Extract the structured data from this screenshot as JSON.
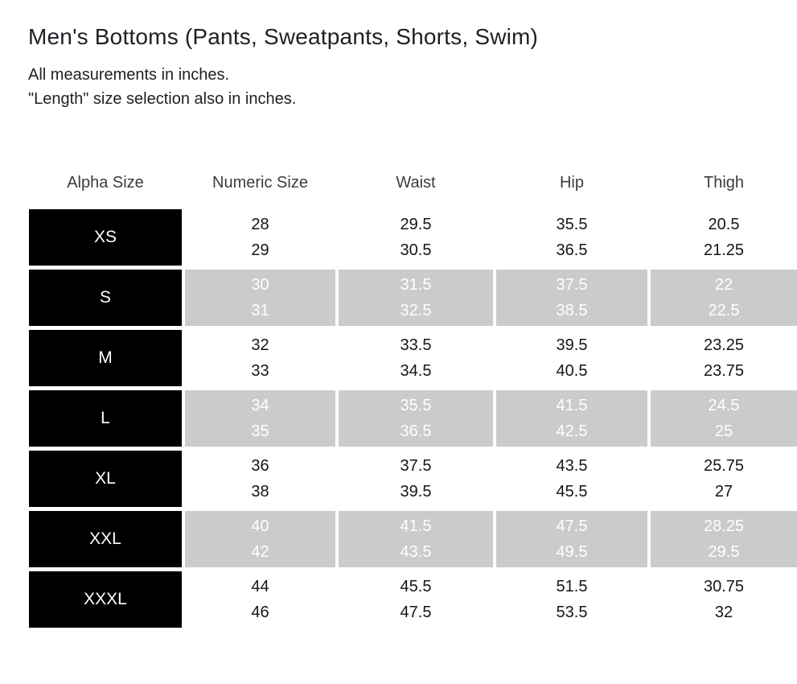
{
  "page": {
    "title": "Men's Bottoms (Pants, Sweatpants, Shorts, Swim)",
    "note_line1": "All measurements in inches.",
    "note_line2": "\"Length\" size selection also in inches."
  },
  "table": {
    "columns": [
      "Alpha Size",
      "Numeric Size",
      "Waist",
      "Hip",
      "Thigh"
    ],
    "rows": [
      {
        "alpha": "XS",
        "highlighted": false,
        "numeric": [
          "28",
          "29"
        ],
        "waist": [
          "29.5",
          "30.5"
        ],
        "hip": [
          "35.5",
          "36.5"
        ],
        "thigh": [
          "20.5",
          "21.25"
        ]
      },
      {
        "alpha": "S",
        "highlighted": true,
        "numeric": [
          "30",
          "31"
        ],
        "waist": [
          "31.5",
          "32.5"
        ],
        "hip": [
          "37.5",
          "38.5"
        ],
        "thigh": [
          "22",
          "22.5"
        ]
      },
      {
        "alpha": "M",
        "highlighted": false,
        "numeric": [
          "32",
          "33"
        ],
        "waist": [
          "33.5",
          "34.5"
        ],
        "hip": [
          "39.5",
          "40.5"
        ],
        "thigh": [
          "23.25",
          "23.75"
        ]
      },
      {
        "alpha": "L",
        "highlighted": true,
        "numeric": [
          "34",
          "35"
        ],
        "waist": [
          "35.5",
          "36.5"
        ],
        "hip": [
          "41.5",
          "42.5"
        ],
        "thigh": [
          "24.5",
          "25"
        ]
      },
      {
        "alpha": "XL",
        "highlighted": false,
        "numeric": [
          "36",
          "38"
        ],
        "waist": [
          "37.5",
          "39.5"
        ],
        "hip": [
          "43.5",
          "45.5"
        ],
        "thigh": [
          "25.75",
          "27"
        ]
      },
      {
        "alpha": "XXL",
        "highlighted": true,
        "numeric": [
          "40",
          "42"
        ],
        "waist": [
          "41.5",
          "43.5"
        ],
        "hip": [
          "47.5",
          "49.5"
        ],
        "thigh": [
          "28.25",
          "29.5"
        ]
      },
      {
        "alpha": "XXXL",
        "highlighted": false,
        "numeric": [
          "44",
          "46"
        ],
        "waist": [
          "45.5",
          "47.5"
        ],
        "hip": [
          "51.5",
          "53.5"
        ],
        "thigh": [
          "30.75",
          "32"
        ]
      }
    ],
    "colors": {
      "alpha_cell_bg": "#000000",
      "alpha_cell_text": "#ffffff",
      "highlight_bg": "#cbcbcb",
      "highlight_text": "#ffffff",
      "normal_text": "#141619",
      "header_text": "#383d42",
      "title_text": "#1d2025"
    }
  }
}
